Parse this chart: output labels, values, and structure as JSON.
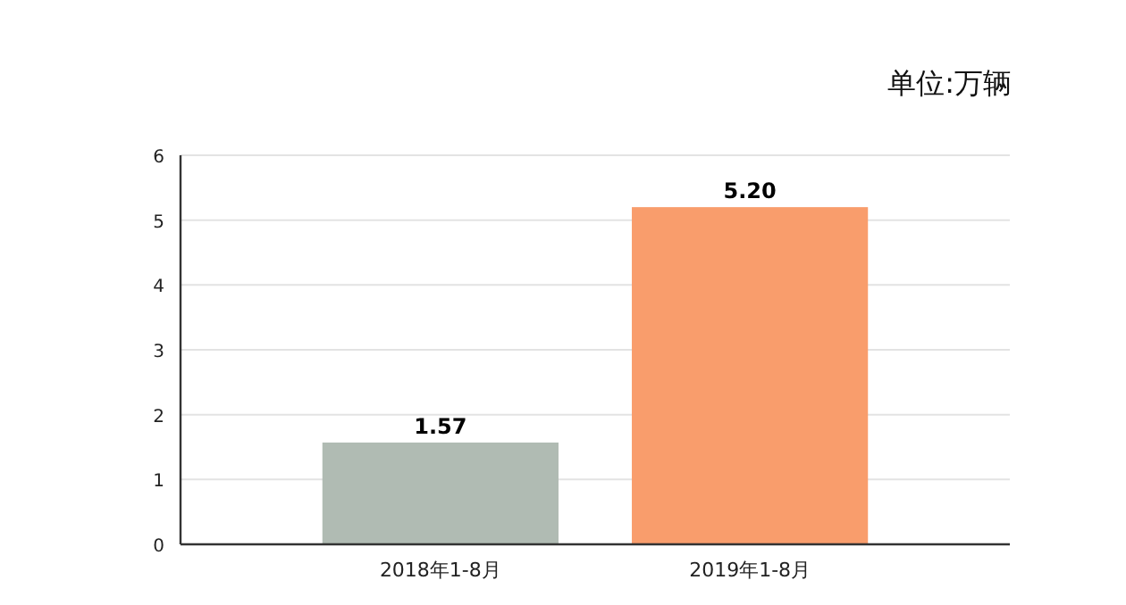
{
  "chart_data": {
    "type": "bar",
    "annotations": [
      "单位:万辆"
    ],
    "categories": [
      "2018年1-8月",
      "2019年1-8月"
    ],
    "values": [
      1.57,
      5.2
    ],
    "colors": [
      "#b0bbb3",
      "#f99d6c"
    ],
    "value_labels": [
      "1.57",
      "5.20"
    ],
    "ylim": [
      0,
      6
    ],
    "yticks": [
      0,
      1,
      2,
      3,
      4,
      5,
      6
    ],
    "grid": "y"
  }
}
